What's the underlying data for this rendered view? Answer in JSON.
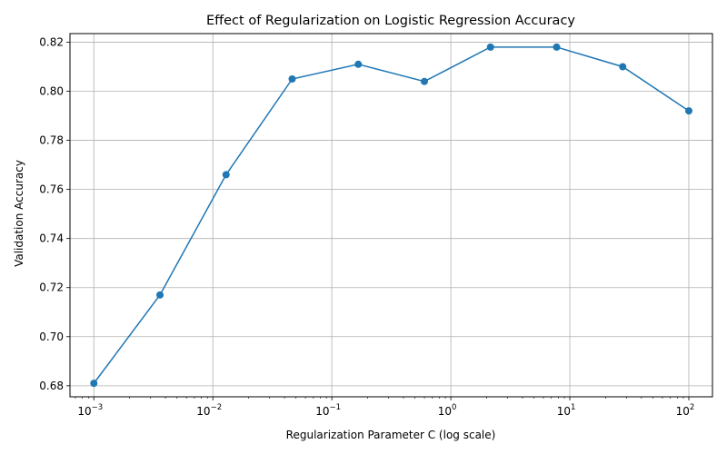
{
  "chart_data": {
    "type": "line",
    "title": "Effect of Regularization on Logistic Regression Accuracy",
    "xlabel": "Regularization Parameter C (log scale)",
    "ylabel": "Validation Accuracy",
    "xscale": "log",
    "xlim": [
      0.00063,
      158
    ],
    "ylim": [
      0.6755,
      0.8235
    ],
    "grid": true,
    "line_color": "#1f77b4",
    "marker": "circle",
    "x_ticks": [
      {
        "value": 0.001,
        "base": "10",
        "exp": "−3"
      },
      {
        "value": 0.01,
        "base": "10",
        "exp": "−2"
      },
      {
        "value": 0.1,
        "base": "10",
        "exp": "−1"
      },
      {
        "value": 1,
        "base": "10",
        "exp": "0"
      },
      {
        "value": 10,
        "base": "10",
        "exp": "1"
      },
      {
        "value": 100,
        "base": "10",
        "exp": "2"
      }
    ],
    "y_ticks": [
      {
        "value": 0.68,
        "label": "0.68"
      },
      {
        "value": 0.7,
        "label": "0.70"
      },
      {
        "value": 0.72,
        "label": "0.72"
      },
      {
        "value": 0.74,
        "label": "0.74"
      },
      {
        "value": 0.76,
        "label": "0.76"
      },
      {
        "value": 0.78,
        "label": "0.78"
      },
      {
        "value": 0.8,
        "label": "0.80"
      },
      {
        "value": 0.82,
        "label": "0.82"
      }
    ],
    "series": [
      {
        "x": [
          0.001,
          0.003594,
          0.012915,
          0.046416,
          0.16681,
          0.59948,
          2.1544,
          7.7426,
          27.826,
          100
        ],
        "y": [
          0.681,
          0.717,
          0.766,
          0.805,
          0.811,
          0.804,
          0.818,
          0.818,
          0.81,
          0.792
        ]
      }
    ]
  }
}
